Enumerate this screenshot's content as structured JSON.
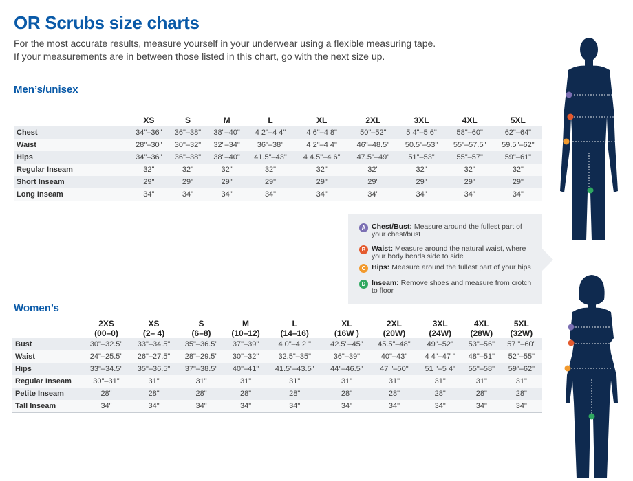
{
  "title": "OR Scrubs size charts",
  "intro": {
    "line1": "For the most accurate results, measure yourself in your underwear using a flexible measuring tape.",
    "line2": "If your measurements are in between those listed in this chart, go with the next size up."
  },
  "colors": {
    "heading": "#0a5aa8",
    "figure": "#0f2a4f",
    "badge_a": "#7b6fb3",
    "badge_b": "#e45a2e",
    "badge_c": "#f29a2e",
    "badge_d": "#2fa860"
  },
  "men": {
    "heading": "Men’s/unisex",
    "sizes": [
      "XS",
      "S",
      "M",
      "L",
      "XL",
      "2XL",
      "3XL",
      "4XL",
      "5XL"
    ],
    "rows": [
      {
        "label": "Chest",
        "values": [
          "34\"–36\"",
          "36\"–38\"",
          "38\"–40\"",
          "4 2\"–4 4\"",
          "4 6\"–4 8\"",
          "50\"–52\"",
          "5 4\"–5 6\"",
          "58\"–60\"",
          "62\"–64\""
        ]
      },
      {
        "label": "Waist",
        "values": [
          "28\"–30\"",
          "30\"–32\"",
          "32\"–34\"",
          "36\"–38\"",
          "4 2\"–4 4\"",
          "46\"–48.5\"",
          "50.5\"–53\"",
          "55\"–57.5\"",
          "59.5\"–62\""
        ]
      },
      {
        "label": "Hips",
        "values": [
          "34\"–36\"",
          "36\"–38\"",
          "38\"–40\"",
          "41.5\"–43\"",
          "4 4.5\"–4 6\"",
          "47.5\"–49\"",
          "51\"–53\"",
          "55\"–57\"",
          "59\"–61\""
        ]
      },
      {
        "label": "Regular Inseam",
        "values": [
          "32\"",
          "32\"",
          "32\"",
          "32\"",
          "32\"",
          "32\"",
          "32\"",
          "32\"",
          "32\""
        ]
      },
      {
        "label": "Short Inseam",
        "values": [
          "29\"",
          "29\"",
          "29\"",
          "29\"",
          "29\"",
          "29\"",
          "29\"",
          "29\"",
          "29\""
        ]
      },
      {
        "label": "Long Inseam",
        "values": [
          "34\"",
          "34\"",
          "34\"",
          "34\"",
          "34\"",
          "34\"",
          "34\"",
          "34\"",
          "34\""
        ]
      }
    ]
  },
  "women": {
    "heading": "Women’s",
    "sizes": [
      {
        "size": "2XS",
        "alt": "(00–0)"
      },
      {
        "size": "XS",
        "alt": "(2– 4)"
      },
      {
        "size": "S",
        "alt": "(6–8)"
      },
      {
        "size": "M",
        "alt": "(10–12)"
      },
      {
        "size": "L",
        "alt": "(14–16)"
      },
      {
        "size": "XL",
        "alt": "(16W )"
      },
      {
        "size": "2XL",
        "alt": "(20W)"
      },
      {
        "size": "3XL",
        "alt": "(24W)"
      },
      {
        "size": "4XL",
        "alt": "(28W)"
      },
      {
        "size": "5XL",
        "alt": "(32W)"
      }
    ],
    "rows": [
      {
        "label": "Bust",
        "values": [
          "30\"–32.5\"",
          "33\"–34.5\"",
          "35\"–36.5\"",
          "37\"–39\"",
          "4 0\"–4 2 \"",
          "42.5\"–45\"",
          "45.5\"–48\"",
          "49\"–52\"",
          "53\"–56\"",
          "57 \"–60\""
        ]
      },
      {
        "label": "Waist",
        "values": [
          "24\"–25.5\"",
          "26\"–27.5\"",
          "28\"–29.5\"",
          "30\"–32\"",
          "32.5\"–35\"",
          "36\"–39\"",
          "40\"–43\"",
          "4 4\"–47 \"",
          "48\"–51\"",
          "52\"–55\""
        ]
      },
      {
        "label": "Hips",
        "values": [
          "33\"–34.5\"",
          "35\"–36.5\"",
          "37\"–38.5\"",
          "40\"–41\"",
          "41.5\"–43.5\"",
          "44\"–46.5\"",
          "47 \"–50\"",
          "51 \"–5 4\"",
          "55\"–58\"",
          "59\"–62\""
        ]
      },
      {
        "label": "Regular Inseam",
        "values": [
          "30\"–31\"",
          "31\"",
          "31\"",
          "31\"",
          "31\"",
          "31\"",
          "31\"",
          "31\"",
          "31\"",
          "31\""
        ]
      },
      {
        "label": "Petite Inseam",
        "values": [
          "28\"",
          "28\"",
          "28\"",
          "28\"",
          "28\"",
          "28\"",
          "28\"",
          "28\"",
          "28\"",
          "28\""
        ]
      },
      {
        "label": "Tall Inseam",
        "values": [
          "34\"",
          "34\"",
          "34\"",
          "34\"",
          "34\"",
          "34\"",
          "34\"",
          "34\"",
          "34\"",
          "34\""
        ]
      }
    ]
  },
  "legend": [
    {
      "letter": "A",
      "term": "Chest/Bust:",
      "desc": " Measure around the fullest part of your chest/bust"
    },
    {
      "letter": "B",
      "term": "Waist:",
      "desc": " Measure around the natural waist, where your body bends side to side"
    },
    {
      "letter": "C",
      "term": "Hips:",
      "desc": " Measure around the fullest part of your hips"
    },
    {
      "letter": "D",
      "term": "Inseam:",
      "desc": " Remove shoes and measure from crotch to floor"
    }
  ]
}
